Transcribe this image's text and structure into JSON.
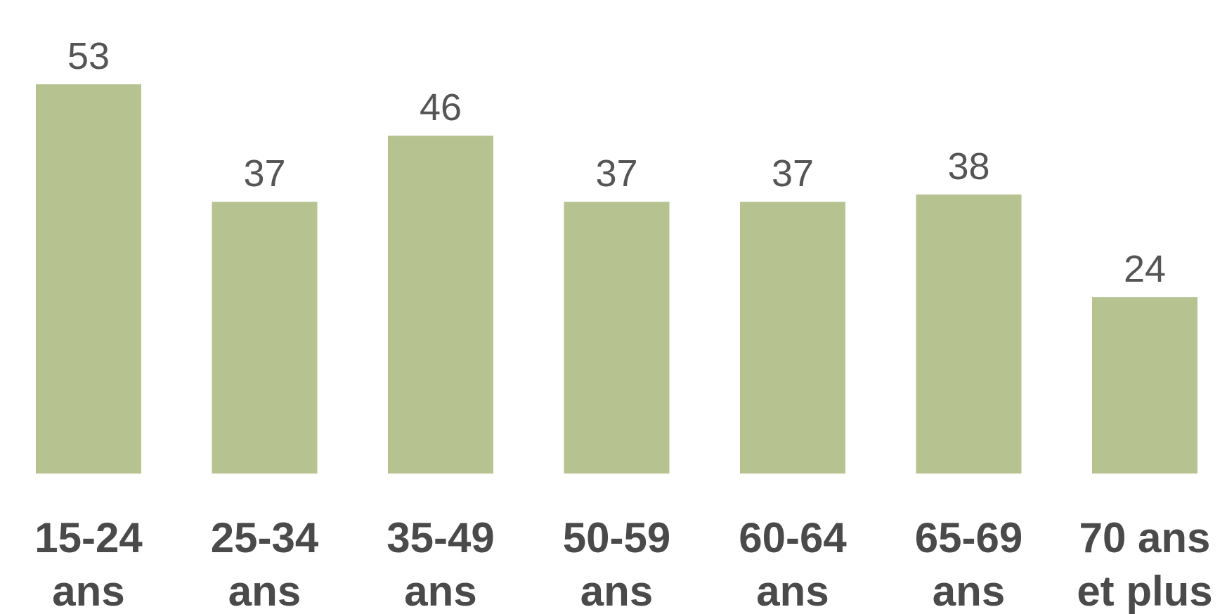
{
  "chart_data": {
    "type": "bar",
    "title": "",
    "xlabel": "",
    "ylabel": "",
    "categories": [
      [
        "15-24",
        "ans"
      ],
      [
        "25-34",
        "ans"
      ],
      [
        "35-49",
        "ans"
      ],
      [
        "50-59",
        "ans"
      ],
      [
        "60-64",
        "ans"
      ],
      [
        "65-69",
        "ans"
      ],
      [
        "70 ans",
        "et plus"
      ]
    ],
    "values": [
      53,
      37,
      46,
      37,
      37,
      38,
      24
    ],
    "value_labels": [
      "53",
      "37",
      "46",
      "37",
      "37",
      "38",
      "24"
    ],
    "ylim": [
      0,
      53
    ],
    "grid": false,
    "legend": "none",
    "colors": {
      "bar": "#b7c291",
      "value_text": "#555555",
      "category_text": "#4a4a4a"
    }
  }
}
